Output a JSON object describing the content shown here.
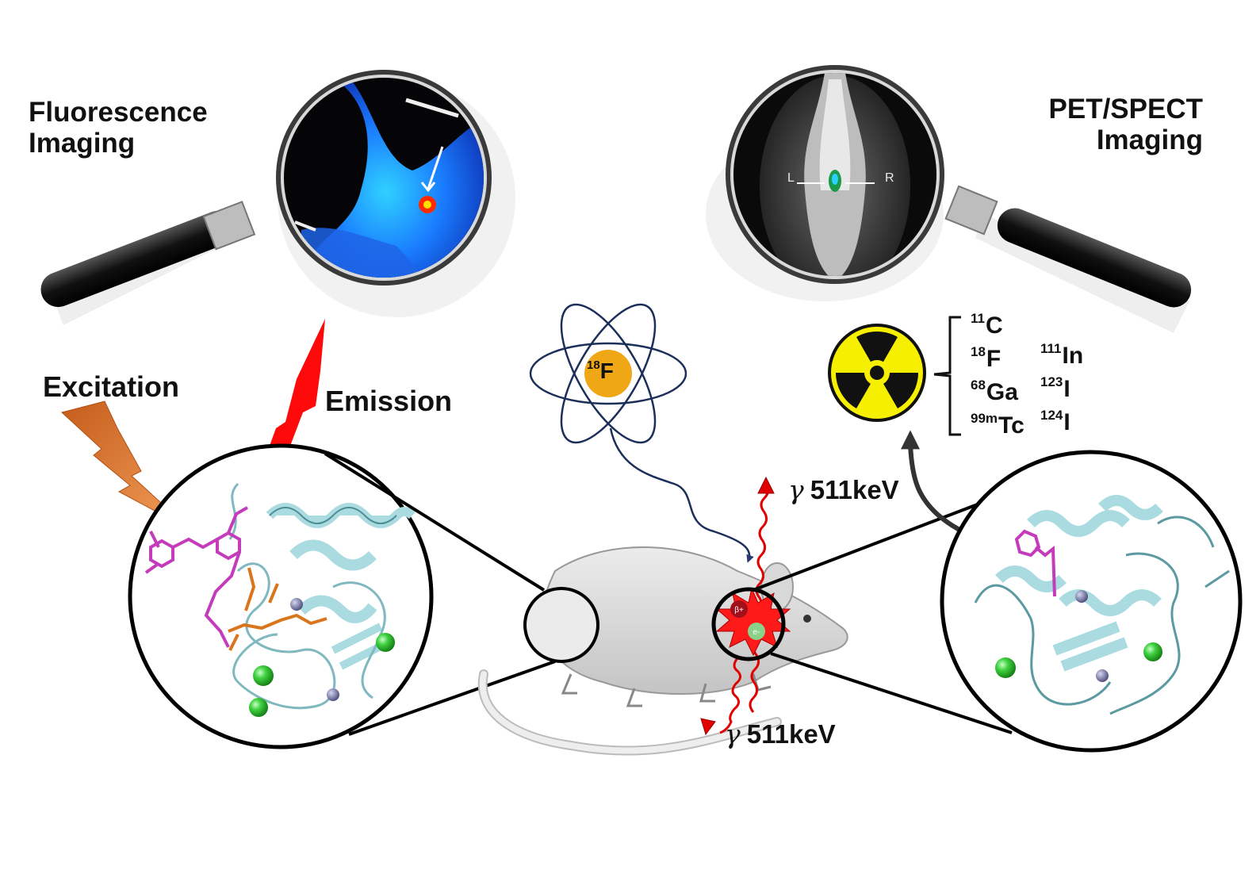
{
  "labels": {
    "fluorescence": "Fluorescence\nImaging",
    "pet": "PET/SPECT\nImaging",
    "excitation": "Excitation",
    "emission": "Emission",
    "gamma_symbol": "γ",
    "gamma_top": "511keV",
    "gamma_bottom": "511keV",
    "positron": "β+",
    "electron": "e-",
    "nucleus_mass": "18",
    "nucleus_symbol": "F"
  },
  "scan_labels": {
    "left": "L",
    "right": "R"
  },
  "isotopes": [
    {
      "mass": "11",
      "symbol": "C"
    },
    {
      "mass": "18",
      "symbol": "F"
    },
    {
      "mass": "111",
      "symbol": "In"
    },
    {
      "mass": "68",
      "symbol": "Ga"
    },
    {
      "mass": "123",
      "symbol": "I"
    },
    {
      "mass": "99m",
      "symbol": "Tc"
    },
    {
      "mass": "124",
      "symbol": "I"
    }
  ],
  "colors": {
    "ribbon": "#a9dbe0",
    "ribbon_edge": "#4f8d95",
    "dye": "#c43bbb",
    "linker": "#d9751d",
    "calcium": "#34c534",
    "zinc": "#6f6fa0",
    "emission": "#ff0a0a",
    "excitation": "#e07a2c",
    "radiation": "#f7ef00",
    "atom_orbit": "#1b2f5a",
    "nucleus": "#f0a716"
  },
  "icons": [
    "magnifier-icon",
    "atom-icon",
    "radiation-icon",
    "mouse-icon",
    "lightning-icon"
  ]
}
